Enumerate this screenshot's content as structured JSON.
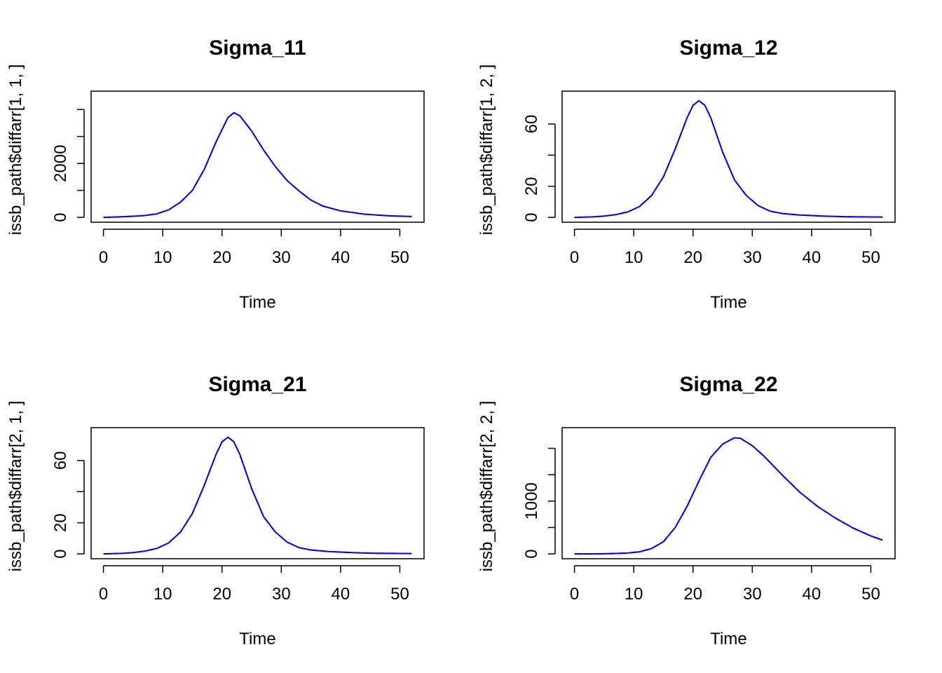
{
  "chart_data": [
    {
      "type": "line",
      "title": "Sigma_11",
      "xlabel": "Time",
      "ylabel": "issb_path$diffarr[1, 1, ]",
      "xlim": [
        0,
        52
      ],
      "ylim": [
        0,
        4500
      ],
      "xticks": [
        0,
        10,
        20,
        30,
        40,
        50
      ],
      "yticks": [
        0,
        1000,
        2000,
        3000,
        4000
      ],
      "ytick_labels": [
        "0",
        "",
        "2000",
        "",
        ""
      ],
      "grid": false,
      "series": [
        {
          "color": "#ff0000",
          "dash": "dashed",
          "x": [
            0,
            3,
            5,
            7,
            9,
            11,
            13,
            15,
            17,
            19,
            21,
            22,
            23,
            25,
            27,
            29,
            31,
            33,
            35,
            37,
            40,
            44,
            48,
            52
          ],
          "y": [
            0,
            20,
            40,
            70,
            130,
            280,
            560,
            1000,
            1780,
            2800,
            3700,
            3880,
            3770,
            3200,
            2500,
            1880,
            1360,
            980,
            640,
            420,
            240,
            120,
            60,
            30
          ]
        },
        {
          "color": "#0000ff",
          "dash": "solid",
          "x": [
            0,
            3,
            5,
            7,
            9,
            11,
            13,
            15,
            17,
            19,
            21,
            22,
            23,
            25,
            27,
            29,
            31,
            33,
            35,
            37,
            40,
            44,
            48,
            52
          ],
          "y": [
            0,
            20,
            40,
            70,
            130,
            280,
            560,
            1000,
            1780,
            2800,
            3700,
            3880,
            3770,
            3200,
            2500,
            1880,
            1360,
            980,
            640,
            420,
            240,
            120,
            60,
            30
          ]
        }
      ]
    },
    {
      "type": "line",
      "title": "Sigma_12",
      "xlabel": "Time",
      "ylabel": "issb_path$diffarr[1, 2, ]",
      "xlim": [
        0,
        52
      ],
      "ylim": [
        0,
        78
      ],
      "xticks": [
        0,
        10,
        20,
        30,
        40,
        50
      ],
      "yticks": [
        0,
        20,
        40,
        60
      ],
      "ytick_labels": [
        "0",
        "20",
        "",
        "60"
      ],
      "grid": false,
      "series": [
        {
          "color": "#ff0000",
          "dash": "dashed",
          "x": [
            0,
            3,
            5,
            7,
            9,
            11,
            13,
            15,
            17,
            19,
            20,
            21,
            22,
            23,
            25,
            27,
            29,
            31,
            33,
            35,
            38,
            42,
            46,
            52
          ],
          "y": [
            0,
            0.3,
            0.8,
            1.8,
            3.5,
            7,
            14,
            26,
            44,
            64,
            72,
            75,
            72,
            64,
            42,
            24,
            14,
            7.5,
            4,
            2.5,
            1.5,
            0.8,
            0.4,
            0.2
          ]
        },
        {
          "color": "#0000ff",
          "dash": "solid",
          "x": [
            0,
            3,
            5,
            7,
            9,
            11,
            13,
            15,
            17,
            19,
            20,
            21,
            22,
            23,
            25,
            27,
            29,
            31,
            33,
            35,
            38,
            42,
            46,
            52
          ],
          "y": [
            0,
            0.3,
            0.8,
            1.8,
            3.5,
            7,
            14,
            26,
            44,
            64,
            72,
            75,
            72,
            64,
            42,
            24,
            14,
            7.5,
            4,
            2.5,
            1.5,
            0.8,
            0.4,
            0.2
          ]
        }
      ]
    },
    {
      "type": "line",
      "title": "Sigma_21",
      "xlabel": "Time",
      "ylabel": "issb_path$diffarr[2, 1, ]",
      "xlim": [
        0,
        52
      ],
      "ylim": [
        0,
        78
      ],
      "xticks": [
        0,
        10,
        20,
        30,
        40,
        50
      ],
      "yticks": [
        0,
        20,
        40,
        60
      ],
      "ytick_labels": [
        "0",
        "20",
        "",
        "60"
      ],
      "grid": false,
      "series": [
        {
          "color": "#ff0000",
          "dash": "dashed",
          "x": [
            0,
            3,
            5,
            7,
            9,
            11,
            13,
            15,
            17,
            19,
            20,
            21,
            22,
            23,
            25,
            27,
            29,
            31,
            33,
            35,
            38,
            42,
            46,
            52
          ],
          "y": [
            0,
            0.3,
            0.8,
            1.8,
            3.5,
            7,
            14,
            26,
            44,
            64,
            72,
            75,
            72,
            64,
            42,
            24,
            14,
            7.5,
            4,
            2.5,
            1.5,
            0.8,
            0.4,
            0.2
          ]
        },
        {
          "color": "#0000ff",
          "dash": "solid",
          "x": [
            0,
            3,
            5,
            7,
            9,
            11,
            13,
            15,
            17,
            19,
            20,
            21,
            22,
            23,
            25,
            27,
            29,
            31,
            33,
            35,
            38,
            42,
            46,
            52
          ],
          "y": [
            0,
            0.3,
            0.8,
            1.8,
            3.5,
            7,
            14,
            26,
            44,
            64,
            72,
            75,
            72,
            64,
            42,
            24,
            14,
            7.5,
            4,
            2.5,
            1.5,
            0.8,
            0.4,
            0.2
          ]
        }
      ]
    },
    {
      "type": "line",
      "title": "Sigma_22",
      "xlabel": "Time",
      "ylabel": "issb_path$diffarr[2, 2, ]",
      "xlim": [
        0,
        52
      ],
      "ylim": [
        0,
        2300
      ],
      "xticks": [
        0,
        10,
        20,
        30,
        40,
        50
      ],
      "yticks": [
        0,
        500,
        1000,
        1500,
        2000
      ],
      "ytick_labels": [
        "0",
        "",
        "1000",
        "",
        ""
      ],
      "grid": false,
      "series": [
        {
          "color": "#ff0000",
          "dash": "dashed",
          "x": [
            0,
            3,
            6,
            9,
            11,
            13,
            15,
            17,
            19,
            21,
            23,
            25,
            27,
            28,
            30,
            32,
            35,
            38,
            41,
            44,
            47,
            50,
            52
          ],
          "y": [
            0,
            0,
            5,
            15,
            40,
            100,
            230,
            500,
            900,
            1380,
            1830,
            2080,
            2200,
            2190,
            2050,
            1850,
            1500,
            1170,
            900,
            680,
            490,
            340,
            260
          ]
        },
        {
          "color": "#0000ff",
          "dash": "solid",
          "x": [
            0,
            3,
            6,
            9,
            11,
            13,
            15,
            17,
            19,
            21,
            23,
            25,
            27,
            28,
            30,
            32,
            35,
            38,
            41,
            44,
            47,
            50,
            52
          ],
          "y": [
            0,
            0,
            5,
            15,
            40,
            100,
            230,
            500,
            900,
            1380,
            1830,
            2080,
            2200,
            2190,
            2050,
            1850,
            1500,
            1170,
            900,
            680,
            490,
            340,
            260
          ]
        }
      ]
    }
  ]
}
